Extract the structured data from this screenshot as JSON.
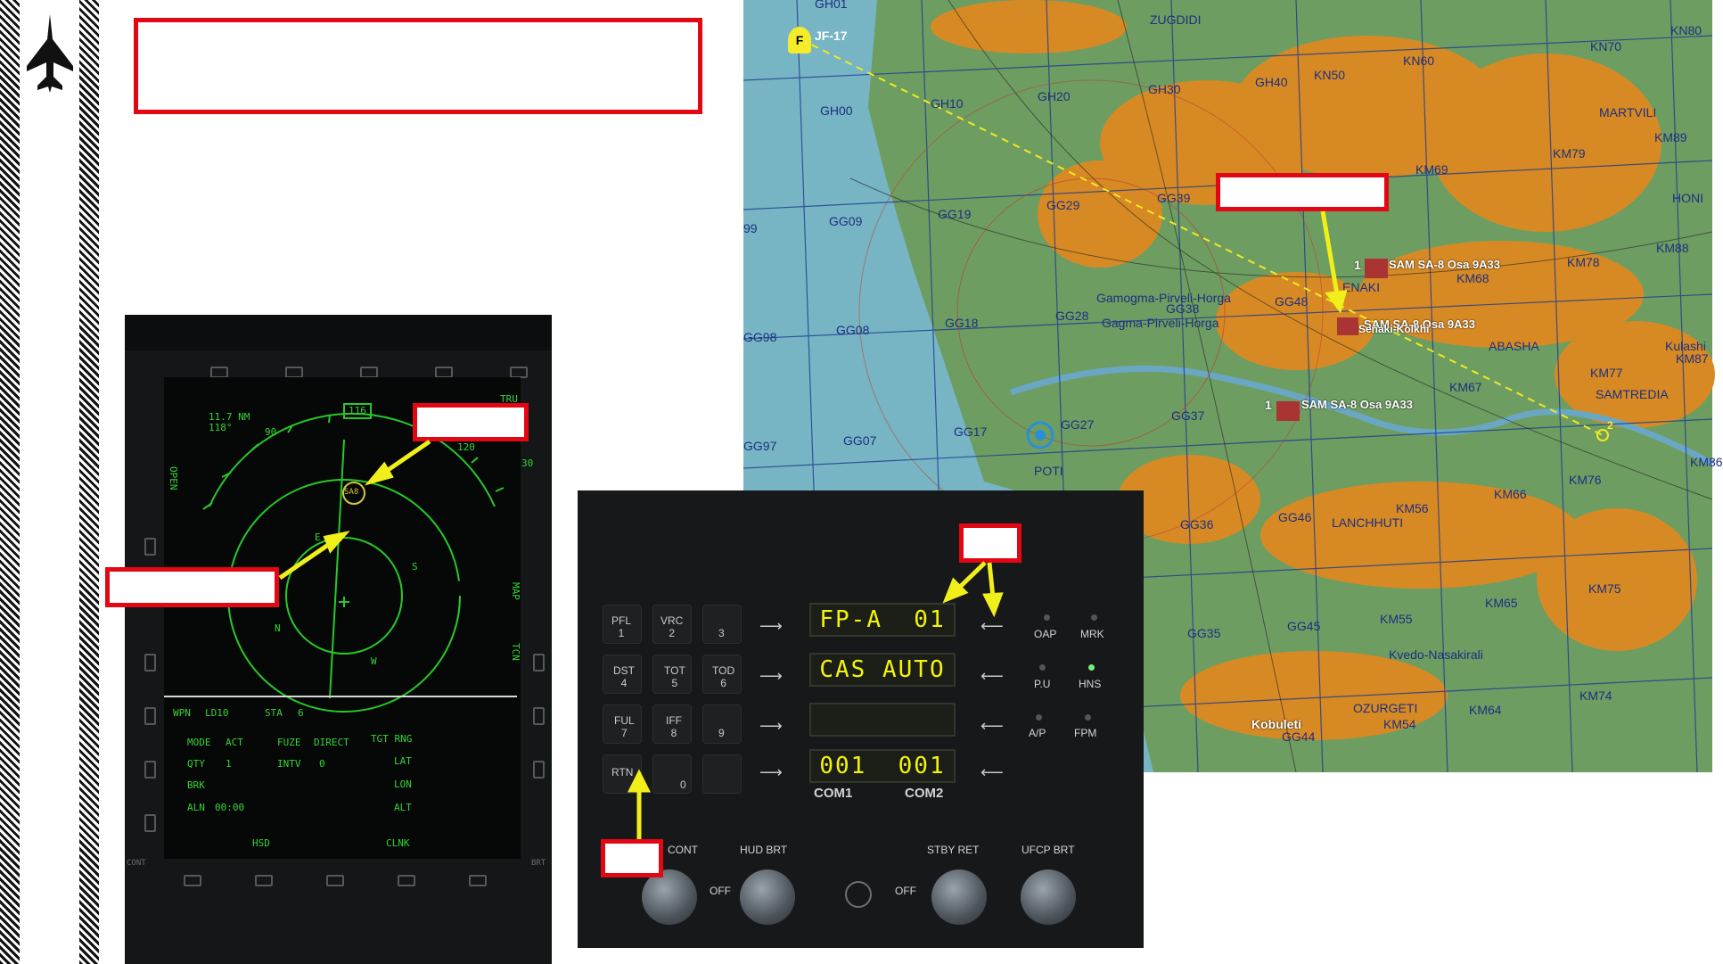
{
  "mfd": {
    "range": "11.7 NM",
    "bearing": "118°",
    "heading_value": "116",
    "scale_outer": "90",
    "scale_right": "30",
    "scale_right2": "120",
    "tag_tru": "TRU",
    "target_label": "SA8",
    "open_label": "OPEN",
    "map_label": "MAP",
    "tcn_label": "TCN",
    "compass_e": "E",
    "compass_s": "S",
    "compass_n": "N",
    "compass_w": "W",
    "wpn_label": "WPN",
    "wpn_value": "LD10",
    "sta_label": "STA",
    "sta_value": "6",
    "mode_label": "MODE",
    "mode_value": "ACT",
    "fuze_label": "FUZE",
    "fuze_value": "DIRECT",
    "tgt_rng": "TGT RNG",
    "qty_label": "QTY",
    "qty_value": "1",
    "intv_label": "INTV",
    "intv_value": "0",
    "lat_label": "LAT",
    "brk_label": "BRK",
    "lon_label": "LON",
    "aln_label": "ALN",
    "aln_value": "00:00",
    "alt_label": "ALT",
    "hsd_label": "HSD",
    "clnk_label": "CLNK",
    "cont_label": "CONT",
    "brt_label": "BRT"
  },
  "ufcp": {
    "keys": [
      {
        "label": "PFL\n1"
      },
      {
        "label": "VRC\n2"
      },
      {
        "label": "\n3"
      },
      {
        "label": "DST\n4"
      },
      {
        "label": "TOT\n5"
      },
      {
        "label": "TOD\n6"
      },
      {
        "label": "FUL\n7"
      },
      {
        "label": "IFF\n8"
      },
      {
        "label": "\n9"
      },
      {
        "label": "RTN"
      },
      {
        "label": "\n0"
      },
      {
        "label": ""
      }
    ],
    "lcd1": "FP-A  01",
    "lcd2": "CAS AUTO",
    "lcd3": "",
    "lcd4": "001  001",
    "com1": "COM1",
    "com2": "COM2",
    "right_buttons": [
      "OAP",
      "MRK",
      "P.U",
      "HNS",
      "A/P",
      "FPM",
      "",
      ""
    ],
    "cont_label": "CONT",
    "hud_brt": "HUD BRT",
    "stby_ret": "STBY RET",
    "ufcp_brt": "UFCP BRT",
    "off1": "OFF",
    "off2": "OFF"
  },
  "map": {
    "aircraft_label": "JF-17",
    "aircraft_marker": "F",
    "grid_labels": [
      "GH01",
      "ZUGDIDI",
      "KN80",
      "KN70",
      "GH10",
      "GH20",
      "GH30",
      "GH40",
      "KN50",
      "KN60",
      "GH00",
      "MARTVILI",
      "KM89",
      "KM79",
      "KM69",
      "HONI",
      "GG29",
      "GG39",
      "GG09",
      "GG19",
      "KM88",
      "KM78",
      "KM68",
      "GG08",
      "GG18",
      "GG28",
      "GG38",
      "GG48",
      "ENAKI",
      "ABASHA",
      "Kulashi",
      "KM87",
      "KM77",
      "KM67",
      "SAMTREDIA",
      "GG17",
      "GG27",
      "GG37",
      "KM86",
      "KM76",
      "POTI",
      "GG07",
      "GG97",
      "GG98",
      "99",
      "GG36",
      "GG46",
      "KM56",
      "LANCHHUTI",
      "KM66",
      "KM75",
      "GG35",
      "GG45",
      "KM55",
      "KM65",
      "Kvedo-Nasakirali",
      "KM74",
      "KM64",
      "KM54",
      "OZURGETI",
      "GG44",
      "Kobuleti",
      "Gamogma-Pirveli-Horga",
      "Gagma-Pirveli-Horga",
      "Senaki-Kolkhi"
    ],
    "sam_label_1": "SAM SA-8 Osa 9A33",
    "sam_label_2": "SAM SA-8 Osa 9A33",
    "sam_label_3": "SAM SA-8 Osa 9A33",
    "sam_group_1": "1",
    "sam_group_3": "1",
    "waypoint_2": "2"
  }
}
